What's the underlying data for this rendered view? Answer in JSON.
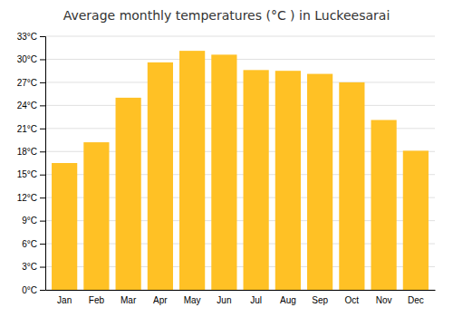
{
  "chart_data": {
    "type": "bar",
    "title": "Average monthly temperatures (°C ) in Luckeesarai",
    "categories": [
      "Jan",
      "Feb",
      "Mar",
      "Apr",
      "May",
      "Jun",
      "Jul",
      "Aug",
      "Sep",
      "Oct",
      "Nov",
      "Dec"
    ],
    "values": [
      16.5,
      19.2,
      25.0,
      29.6,
      31.1,
      30.6,
      28.6,
      28.5,
      28.1,
      27.0,
      22.1,
      18.1
    ],
    "color": "#FFC125",
    "ylim": [
      0,
      33
    ],
    "yticks": [
      {
        "value": 0,
        "label": "0°C"
      },
      {
        "value": 3,
        "label": "3°C"
      },
      {
        "value": 6,
        "label": "6°C"
      },
      {
        "value": 9,
        "label": "9°C"
      },
      {
        "value": 12,
        "label": "12°C"
      },
      {
        "value": 15,
        "label": "15°C"
      },
      {
        "value": 18,
        "label": "18°C"
      },
      {
        "value": 21,
        "label": "21°C"
      },
      {
        "value": 24,
        "label": "24°C"
      },
      {
        "value": 27,
        "label": "27°C"
      },
      {
        "value": 30,
        "label": "30°C"
      },
      {
        "value": 33,
        "label": "33°C"
      }
    ],
    "grid": true
  }
}
